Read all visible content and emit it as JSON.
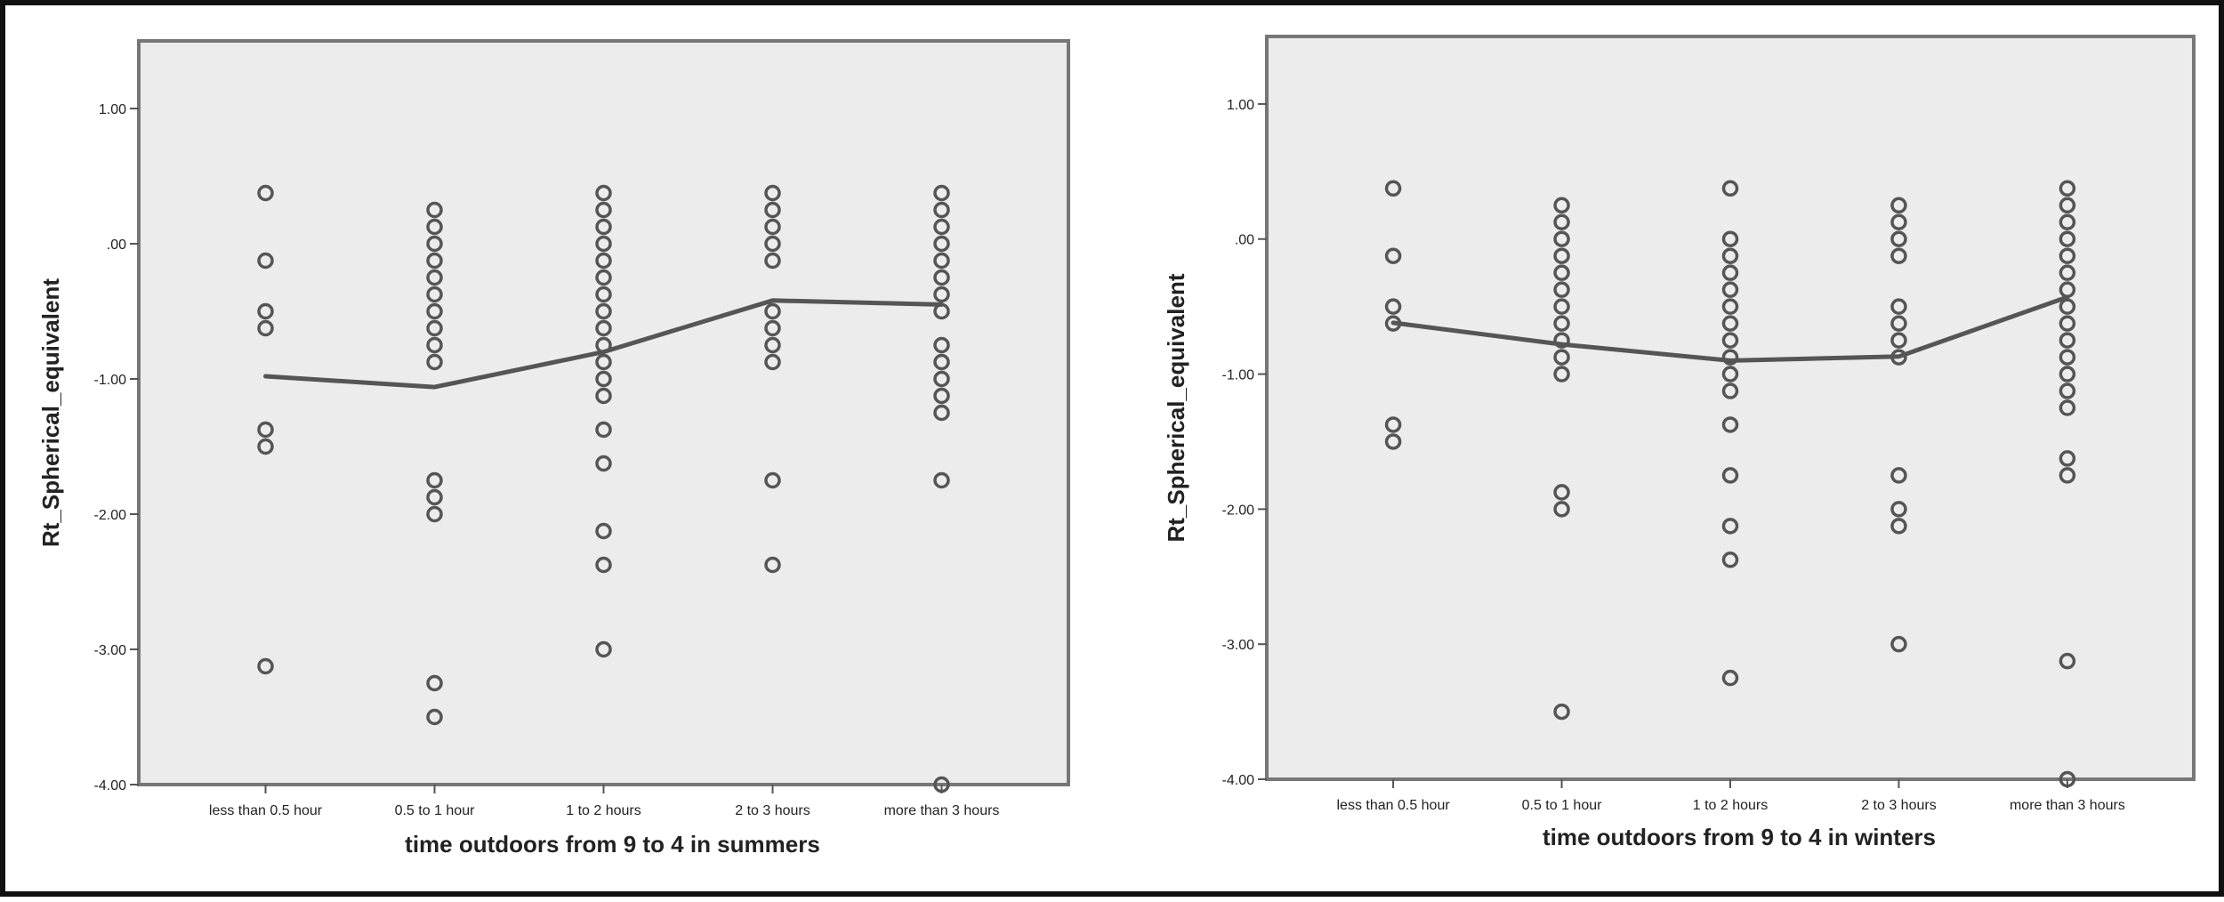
{
  "chart_data": [
    {
      "type": "scatter",
      "xlabel": "time outdoors from 9 to 4 in summers",
      "ylabel": "Rt_Spherical_equivalent",
      "categories": [
        "less than 0.5 hour",
        "0.5 to 1 hour",
        "1 to 2 hours",
        "2 to 3 hours",
        "more than 3 hours"
      ],
      "ylim": [
        -4.0,
        1.5
      ],
      "y_ticks": [
        1.0,
        0.0,
        -1.0,
        -2.0,
        -3.0,
        -4.0
      ],
      "y_tick_labels": [
        "1.00",
        ".00",
        "-1.00",
        "-2.00",
        "-3.00",
        "-4.00"
      ],
      "grid": false,
      "colors": {
        "plot_bg": "#ececec",
        "marker": "#555555",
        "line": "#555555",
        "frame": "#777777"
      },
      "points": [
        [
          0.375,
          -0.125,
          -0.5,
          -0.625,
          -1.375,
          -1.5,
          -3.125
        ],
        [
          0.25,
          0.125,
          0.0,
          -0.125,
          -0.25,
          -0.375,
          -0.5,
          -0.625,
          -0.75,
          -0.875,
          -1.75,
          -1.875,
          -2.0,
          -3.25,
          -3.5
        ],
        [
          0.375,
          0.25,
          0.125,
          0.0,
          -0.125,
          -0.25,
          -0.375,
          -0.5,
          -0.625,
          -0.75,
          -0.875,
          -1.0,
          -1.125,
          -1.375,
          -1.625,
          -2.125,
          -2.375,
          -3.0
        ],
        [
          0.375,
          0.25,
          0.125,
          0.0,
          -0.125,
          -0.5,
          -0.625,
          -0.75,
          -0.875,
          -1.75,
          -2.375
        ],
        [
          0.375,
          0.25,
          0.125,
          0.0,
          -0.125,
          -0.25,
          -0.375,
          -0.5,
          -0.75,
          -0.875,
          -1.0,
          -1.125,
          -1.25,
          -1.75,
          -4.0
        ]
      ],
      "mean_line": [
        -0.98,
        -1.06,
        -0.8,
        -0.42,
        -0.45
      ]
    },
    {
      "type": "scatter",
      "xlabel": "time outdoors from 9 to 4 in winters",
      "ylabel": "Rt_Spherical_equivalent",
      "categories": [
        "less than 0.5 hour",
        "0.5 to 1 hour",
        "1 to 2 hours",
        "2 to 3 hours",
        "more than 3 hours"
      ],
      "ylim": [
        -4.0,
        1.5
      ],
      "y_ticks": [
        1.0,
        0.0,
        -1.0,
        -2.0,
        -3.0,
        -4.0
      ],
      "y_tick_labels": [
        "1.00",
        ".00",
        "-1.00",
        "-2.00",
        "-3.00",
        "-4.00"
      ],
      "grid": false,
      "colors": {
        "plot_bg": "#ececec",
        "marker": "#555555",
        "line": "#555555",
        "frame": "#777777"
      },
      "points": [
        [
          0.375,
          -0.125,
          -0.5,
          -0.625,
          -1.375,
          -1.5
        ],
        [
          0.25,
          0.125,
          0.0,
          -0.125,
          -0.25,
          -0.375,
          -0.5,
          -0.625,
          -0.75,
          -0.875,
          -1.0,
          -1.875,
          -2.0,
          -3.5
        ],
        [
          0.375,
          0.0,
          -0.125,
          -0.25,
          -0.375,
          -0.5,
          -0.625,
          -0.75,
          -0.875,
          -1.0,
          -1.125,
          -1.375,
          -1.75,
          -2.125,
          -2.375,
          -3.25
        ],
        [
          0.25,
          0.125,
          0.0,
          -0.125,
          -0.5,
          -0.625,
          -0.75,
          -0.875,
          -1.75,
          -2.0,
          -2.125,
          -3.0
        ],
        [
          0.375,
          0.25,
          0.125,
          0.0,
          -0.125,
          -0.25,
          -0.375,
          -0.5,
          -0.625,
          -0.75,
          -0.875,
          -1.0,
          -1.125,
          -1.25,
          -1.625,
          -1.75,
          -3.125,
          -4.0
        ]
      ],
      "mean_line": [
        -0.62,
        -0.78,
        -0.9,
        -0.87,
        -0.43
      ]
    }
  ]
}
